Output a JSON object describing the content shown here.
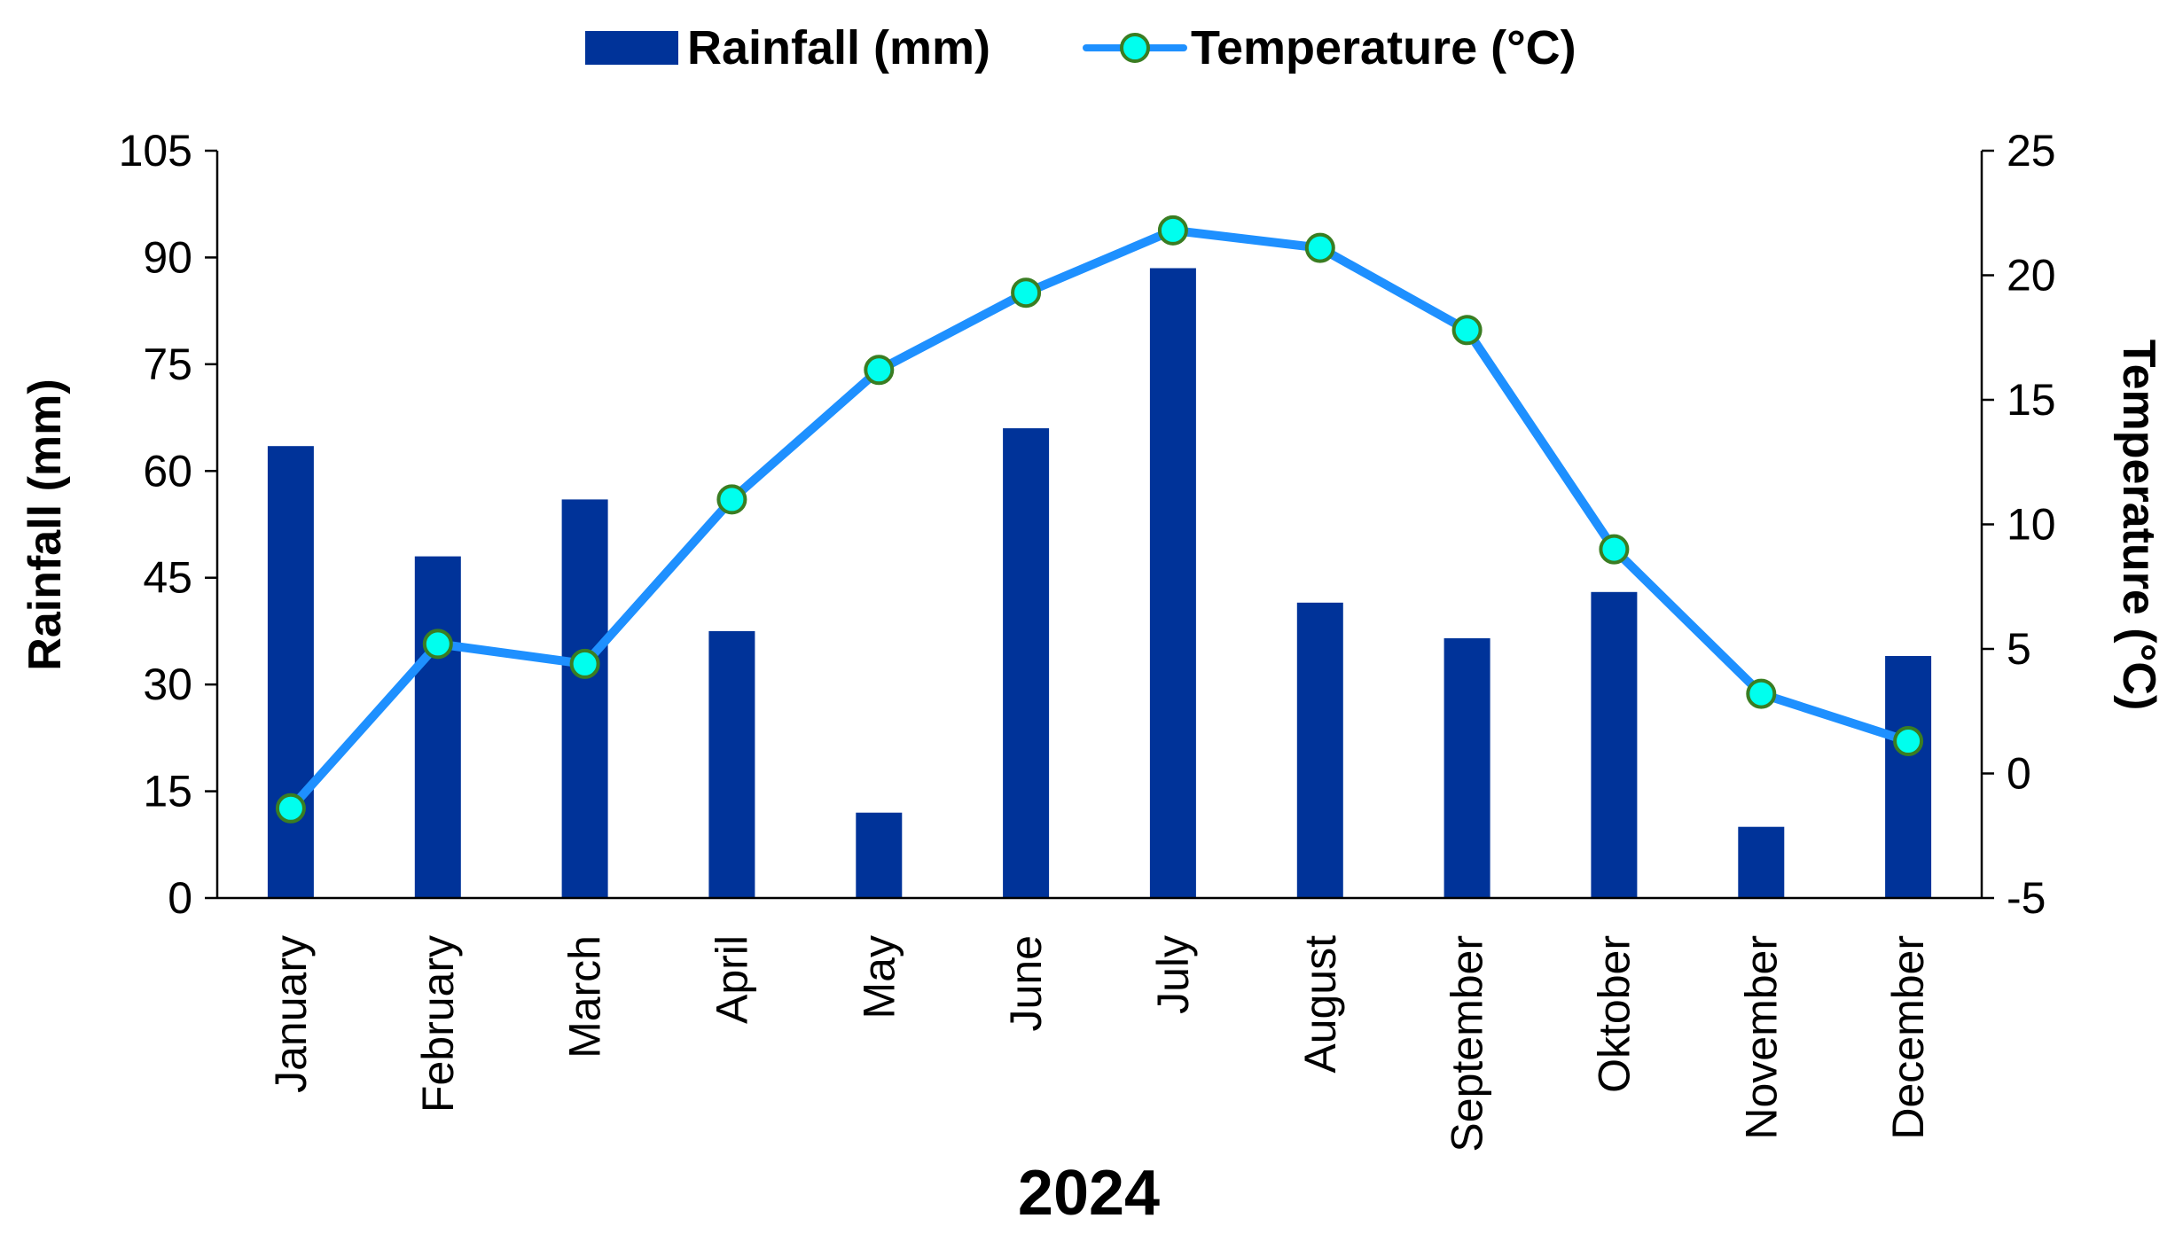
{
  "chart_data": {
    "type": "bar",
    "combo": "bar + line, dual y-axis",
    "categories": [
      "January",
      "February",
      "March",
      "April",
      "May",
      "June",
      "July",
      "August",
      "September",
      "Oktober",
      "November",
      "December"
    ],
    "series": [
      {
        "name": "Rainfall (mm)",
        "type": "bar",
        "axis": "left",
        "color": "#003399",
        "values": [
          63.5,
          48,
          56,
          37.5,
          12,
          66,
          88.5,
          41.5,
          36.5,
          43,
          10,
          34
        ]
      },
      {
        "name": "Temperature (°C)",
        "type": "line",
        "axis": "right",
        "color": "#1E90FF",
        "marker_fill": "#00FFEE",
        "marker_edge": "#3A7D22",
        "values": [
          -1.4,
          5.2,
          4.4,
          11.0,
          16.2,
          19.3,
          21.8,
          21.1,
          17.8,
          9.0,
          3.2,
          1.3
        ]
      }
    ],
    "title": "",
    "xlabel": "2024",
    "ylabel": "Rainfall (mm)",
    "y2label": "Temperature (°C)",
    "ylim": [
      0,
      105
    ],
    "yticks": [
      "0",
      "15",
      "30",
      "45",
      "60",
      "75",
      "90",
      "105"
    ],
    "y2lim": [
      -5,
      25
    ],
    "y2ticks": [
      "-5",
      "0",
      "5",
      "10",
      "15",
      "20",
      "25"
    ],
    "grid": false,
    "legend_position": "top-center"
  }
}
